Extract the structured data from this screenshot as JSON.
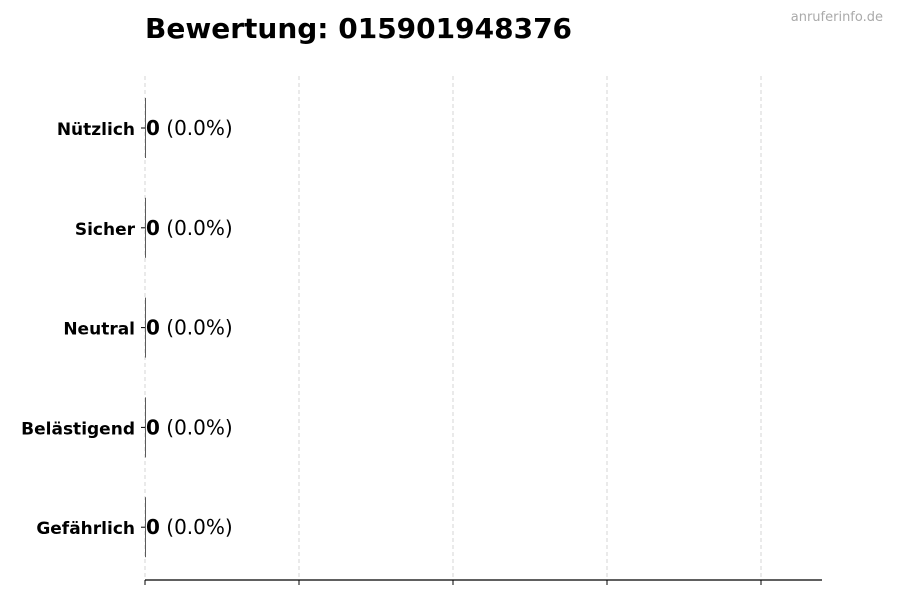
{
  "watermark": "anruferinfo.de",
  "chart_data": {
    "type": "bar",
    "orientation": "horizontal",
    "title": "Bewertung: 015901948376",
    "categories": [
      "Nützlich",
      "Sicher",
      "Neutral",
      "Belästigend",
      "Gefährlich"
    ],
    "values": [
      0,
      0,
      0,
      0,
      0
    ],
    "value_labels": [
      "0",
      "0",
      "0",
      "0",
      "0"
    ],
    "percent_labels": [
      "(0.0%)",
      "(0.0%)",
      "(0.0%)",
      "(0.0%)",
      "(0.0%)"
    ],
    "xlabel": "",
    "ylabel": "",
    "x_tick_labels_shown": false,
    "grid": "vertical dashed",
    "grid_color": "#cccccc"
  }
}
